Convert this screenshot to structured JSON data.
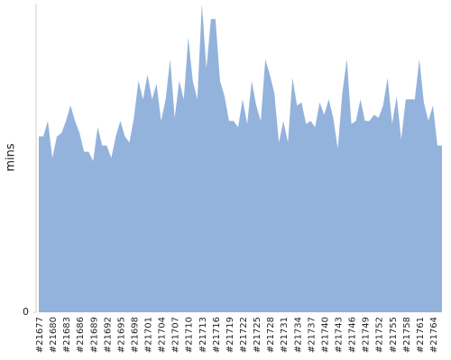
{
  "chart_data": {
    "type": "area",
    "y_label": "mins",
    "categories": [
      "#21677",
      null,
      null,
      "#21680",
      null,
      null,
      "#21683",
      null,
      null,
      "#21686",
      null,
      null,
      "#21689",
      null,
      null,
      "#21692",
      null,
      null,
      "#21695",
      null,
      null,
      "#21698",
      null,
      null,
      "#21701",
      null,
      null,
      "#21704",
      null,
      null,
      "#21707",
      null,
      null,
      "#21710",
      null,
      null,
      "#21713",
      null,
      null,
      "#21716",
      null,
      null,
      "#21719",
      null,
      null,
      "#21722",
      null,
      null,
      "#21725",
      null,
      null,
      "#21728",
      null,
      null,
      "#21731",
      null,
      null,
      "#21734",
      null,
      null,
      "#21737",
      null,
      null,
      "#21740",
      null,
      null,
      "#21743",
      null,
      null,
      "#21746",
      null,
      null,
      "#21749",
      null,
      null,
      "#21752",
      null,
      null,
      "#21755",
      null,
      null,
      "#21758",
      null,
      null,
      "#21761",
      null,
      null,
      "#21764",
      null,
      null
    ],
    "values": [
      57,
      57,
      62,
      50,
      57,
      58,
      62,
      67,
      62,
      58,
      52,
      52,
      49,
      60,
      54,
      54,
      50,
      57,
      62,
      57,
      55,
      63,
      75,
      69,
      77,
      69,
      74,
      62,
      69,
      82,
      63,
      75,
      69,
      89,
      75,
      69,
      100,
      79,
      95,
      95,
      75,
      70,
      62,
      62,
      60,
      69,
      61,
      75,
      67,
      62,
      82,
      77,
      71,
      55,
      62,
      55,
      76,
      67,
      68,
      61,
      62,
      60,
      68,
      64,
      69,
      63,
      53,
      71,
      82,
      61,
      62,
      69,
      62,
      62,
      64,
      63,
      67,
      76,
      61,
      70,
      56,
      69,
      69,
      69,
      82,
      68,
      62,
      67,
      54,
      54
    ],
    "color": "#93b3dc",
    "ylim": [
      0,
      100
    ],
    "yticks": [
      0
    ]
  }
}
